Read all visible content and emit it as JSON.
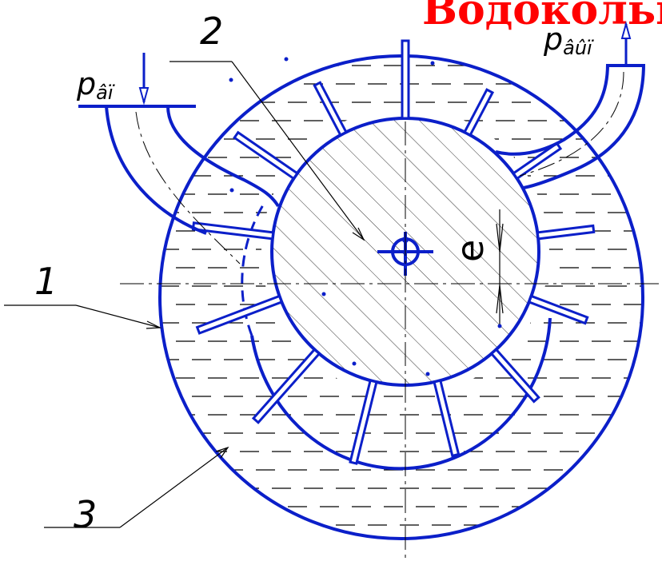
{
  "title": "Водокольцевой",
  "labels": {
    "part_1": "1",
    "part_2": "2",
    "part_3": "3",
    "p_in": "p",
    "p_in_sub": "âï",
    "p_out": "p",
    "p_out_sub": "âûï",
    "eccentricity": "e"
  },
  "colors": {
    "drawing": "#0b1fc9",
    "title": "#ff0000",
    "ink": "#000000"
  }
}
